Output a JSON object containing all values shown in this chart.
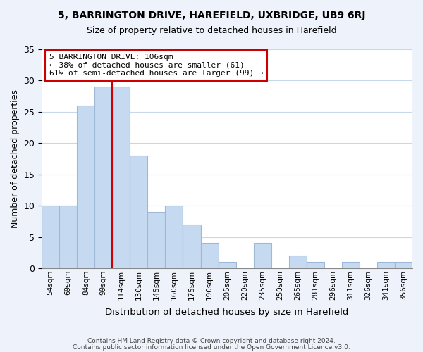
{
  "title": "5, BARRINGTON DRIVE, HAREFIELD, UXBRIDGE, UB9 6RJ",
  "subtitle": "Size of property relative to detached houses in Harefield",
  "xlabel": "Distribution of detached houses by size in Harefield",
  "ylabel": "Number of detached properties",
  "categories": [
    "54sqm",
    "69sqm",
    "84sqm",
    "99sqm",
    "114sqm",
    "130sqm",
    "145sqm",
    "160sqm",
    "175sqm",
    "190sqm",
    "205sqm",
    "220sqm",
    "235sqm",
    "250sqm",
    "265sqm",
    "281sqm",
    "296sqm",
    "311sqm",
    "326sqm",
    "341sqm",
    "356sqm"
  ],
  "values": [
    10,
    10,
    26,
    29,
    29,
    18,
    9,
    10,
    7,
    4,
    1,
    0,
    4,
    0,
    2,
    1,
    0,
    1,
    0,
    1,
    1
  ],
  "bar_color": "#c5d9f0",
  "bar_edge_color": "#a0b8d8",
  "vline_pos": 4.0,
  "vline_color": "#cc0000",
  "annotation_title": "5 BARRINGTON DRIVE: 106sqm",
  "annotation_line1": "← 38% of detached houses are smaller (61)",
  "annotation_line2": "61% of semi-detached houses are larger (99) →",
  "ylim": [
    0,
    35
  ],
  "yticks": [
    0,
    5,
    10,
    15,
    20,
    25,
    30,
    35
  ],
  "footer_line1": "Contains HM Land Registry data © Crown copyright and database right 2024.",
  "footer_line2": "Contains public sector information licensed under the Open Government Licence v3.0.",
  "background_color": "#eef3fb",
  "plot_bg_color": "#ffffff",
  "grid_color": "#c8d8ec"
}
